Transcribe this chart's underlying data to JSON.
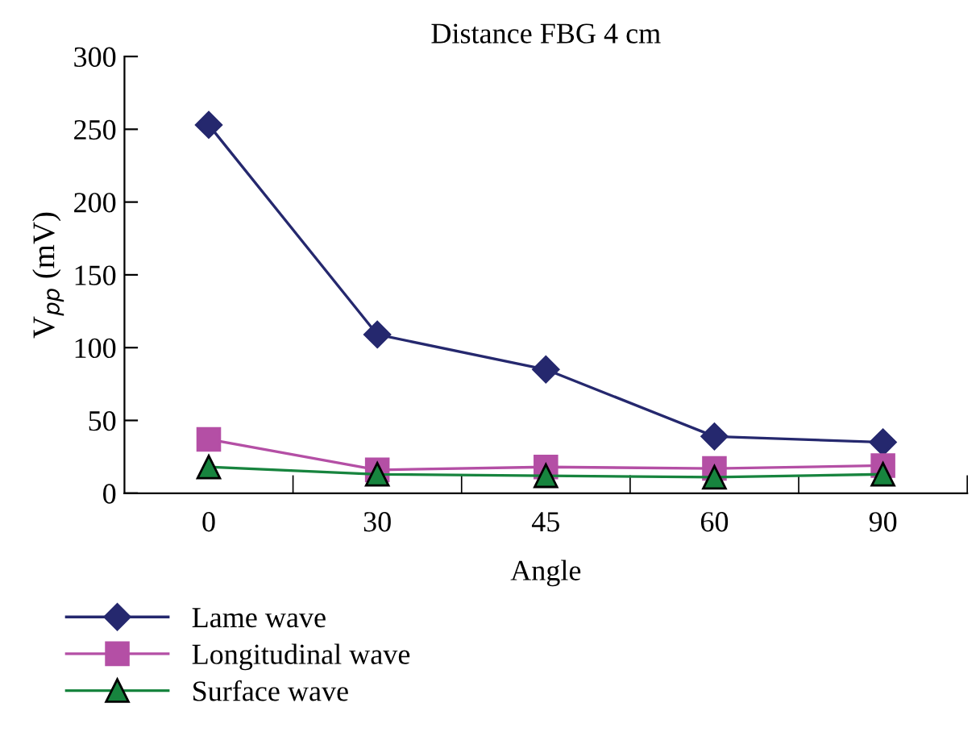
{
  "chart_data": {
    "type": "line",
    "title": "Distance FBG 4 cm",
    "xlabel": "Angle",
    "ylabel": "V$_{pp}$ (mV)",
    "categories": [
      "0",
      "30",
      "45",
      "60",
      "90"
    ],
    "series": [
      {
        "name": "Lame wave",
        "color": "#25286e",
        "marker": "diamond",
        "values": [
          253,
          109,
          85,
          39,
          35
        ]
      },
      {
        "name": "Longitudinal wave",
        "color": "#b44fa5",
        "marker": "square",
        "values": [
          37,
          16,
          18,
          17,
          19
        ]
      },
      {
        "name": "Surface wave",
        "color": "#17843e",
        "marker": "triangle",
        "values": [
          18,
          13,
          12,
          11,
          13
        ]
      }
    ],
    "ylim": [
      0,
      300
    ],
    "yticks": [
      0,
      50,
      100,
      150,
      200,
      250,
      300
    ],
    "grid": false,
    "legend": "bottom",
    "line_style": "solid"
  }
}
